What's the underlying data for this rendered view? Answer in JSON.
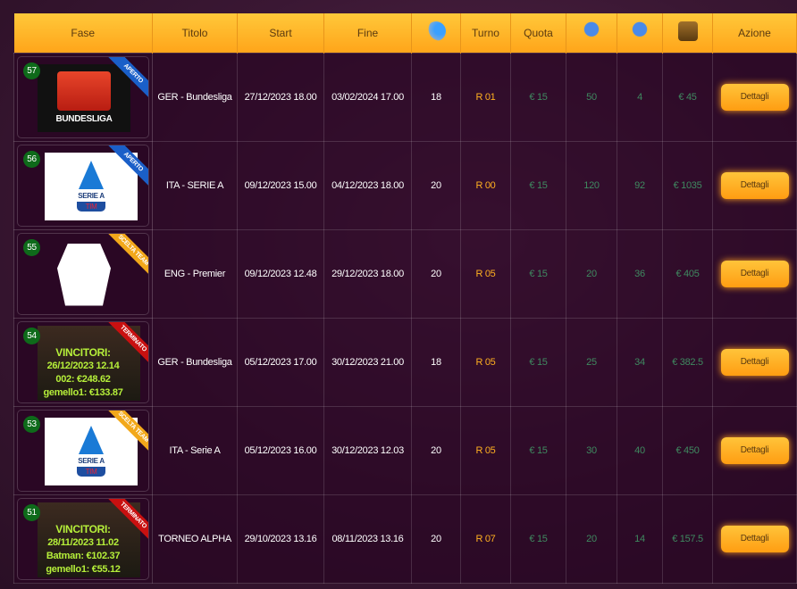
{
  "header": {
    "fase": "Fase",
    "titolo": "Titolo",
    "start": "Start",
    "fine": "Fine",
    "icon1": "players-kick-icon",
    "turno": "Turno",
    "quota": "Quota",
    "icon2": "user-check-icon",
    "icon3": "user-share-icon",
    "icon4": "treasure-chest-icon",
    "azione": "Azione"
  },
  "rows": [
    {
      "id": "57",
      "logo": "bundesliga",
      "logo_text": "BUNDESLIGA",
      "ribbon": "APERTO",
      "titolo": "GER - Bundesliga",
      "start": "27/12/2023 18.00",
      "fine": "03/02/2024 17.00",
      "n": "18",
      "turno": "R 01",
      "quota": "€ 15",
      "c1": "50",
      "c2": "4",
      "prize": "€ 45",
      "button": "Dettagli"
    },
    {
      "id": "56",
      "logo": "seriea",
      "logo_text": "SERIE A",
      "logo_sub": "TIM",
      "ribbon": "APERTO",
      "titolo": "ITA - SERIE A",
      "start": "09/12/2023 15.00",
      "fine": "04/12/2023 18.00",
      "n": "20",
      "turno": "R 00",
      "quota": "€ 15",
      "c1": "120",
      "c2": "92",
      "prize": "€ 1035",
      "button": "Dettagli"
    },
    {
      "id": "55",
      "logo": "premier",
      "ribbon": "SCELTA TEAM",
      "titolo": "ENG - Premier",
      "start": "09/12/2023 12.48",
      "fine": "29/12/2023 18.00",
      "n": "20",
      "turno": "R 05",
      "quota": "€ 15",
      "c1": "20",
      "c2": "36",
      "prize": "€ 405",
      "button": "Dettagli"
    },
    {
      "id": "54",
      "logo": "winners",
      "w1": "VINCITORI:",
      "w2": "26/12/2023 12.14",
      "w3": "002: €248.62",
      "w4": "gemello1: €133.87",
      "ribbon": "TERMINATO",
      "titolo": "GER - Bundesliga",
      "start": "05/12/2023 17.00",
      "fine": "30/12/2023 21.00",
      "n": "18",
      "turno": "R 05",
      "quota": "€ 15",
      "c1": "25",
      "c2": "34",
      "prize": "€ 382.5",
      "button": "Dettagli"
    },
    {
      "id": "53",
      "logo": "seriea",
      "logo_text": "SERIE A",
      "logo_sub": "TIM",
      "ribbon": "SCELTA TEAM",
      "titolo": "ITA - Serie A",
      "start": "05/12/2023 16.00",
      "fine": "30/12/2023 12.03",
      "n": "20",
      "turno": "R 05",
      "quota": "€ 15",
      "c1": "30",
      "c2": "40",
      "prize": "€ 450",
      "button": "Dettagli"
    },
    {
      "id": "51",
      "logo": "winners",
      "w1": "VINCITORI:",
      "w2": "28/11/2023 11.02",
      "w3": "Batman: €102.37",
      "w4": "gemello1: €55.12",
      "ribbon": "TERMINATO",
      "titolo": "TORNEO ALPHA",
      "start": "29/10/2023 13.16",
      "fine": "08/11/2023 13.16",
      "n": "20",
      "turno": "R 07",
      "quota": "€ 15",
      "c1": "20",
      "c2": "14",
      "prize": "€ 157.5",
      "button": "Dettagli"
    }
  ],
  "colors": {
    "header": "#ffb428",
    "turno": "#ffb020",
    "dim": "#3f8a60",
    "aperto": "#1a5fc8",
    "scelta": "#f2a81a",
    "terminato": "#c81010"
  }
}
